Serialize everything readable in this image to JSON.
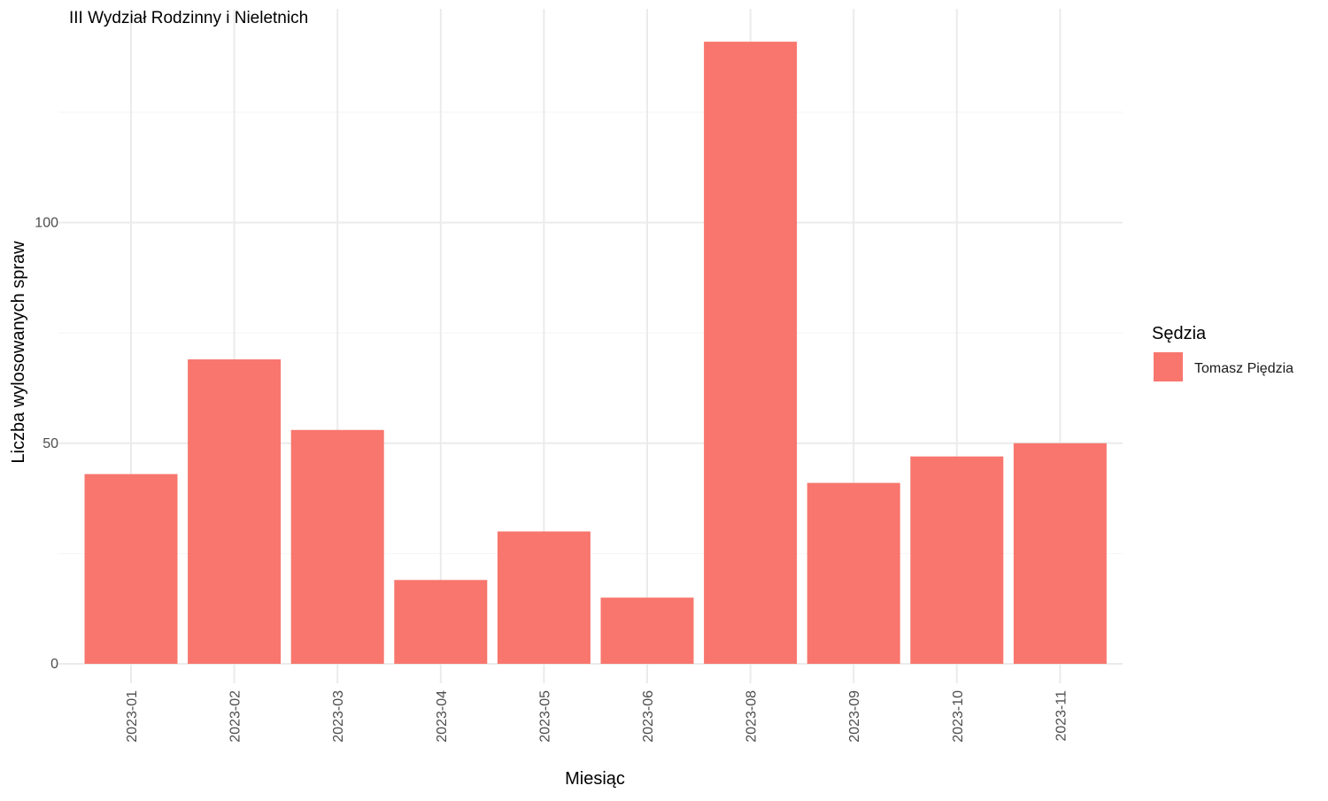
{
  "chart_data": {
    "type": "bar",
    "title": "III Wydział Rodzinny i Nieletnich",
    "xlabel": "Miesiąc",
    "ylabel": "Liczba wylosowanych spraw",
    "categories": [
      "2023-01",
      "2023-02",
      "2023-03",
      "2023-04",
      "2023-05",
      "2023-06",
      "2023-08",
      "2023-09",
      "2023-10",
      "2023-11"
    ],
    "series": [
      {
        "name": "Tomasz Piędzia",
        "color": "#F8766D",
        "values": [
          43,
          69,
          53,
          19,
          30,
          15,
          141,
          41,
          47,
          50
        ]
      }
    ],
    "yticks": [
      0,
      50,
      100
    ],
    "ylim": [
      0,
      150
    ],
    "grid": true,
    "legend": {
      "title": "Sędzia",
      "position": "right"
    }
  }
}
